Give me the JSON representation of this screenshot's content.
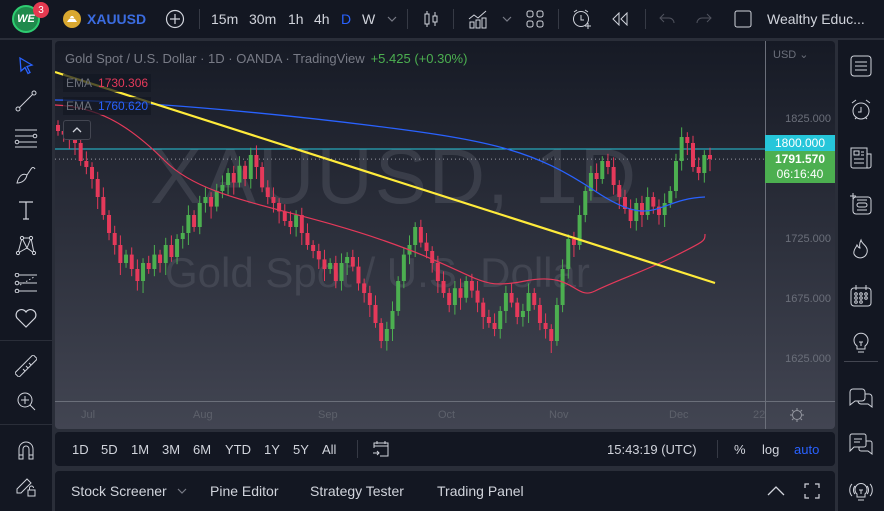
{
  "topbar": {
    "notification_count": "3",
    "logo_text": "WE",
    "symbol": "XAUUSD",
    "intervals": [
      "15m",
      "30m",
      "1h",
      "4h",
      "D",
      "W"
    ],
    "active_interval": "D",
    "layout_name": "Wealthy Educ..."
  },
  "legend": {
    "title": "Gold Spot / U.S. Dollar · 1D · OANDA · TradingView",
    "change": "+5.425 (+0.30%)",
    "ema1_label": "EMA",
    "ema1_value": "1730.306",
    "ema2_label": "EMA",
    "ema2_value": "1760.620"
  },
  "watermark": {
    "symbol": "XAUUSD, 1D",
    "name": "Gold Spot / U.S. Dollar"
  },
  "price_scale": {
    "currency": "USD",
    "levels": [
      "1825.000",
      "1725.000",
      "1675.000",
      "1625.000"
    ],
    "horizontal_line_tag": "1800.000",
    "last_price_tag": "1791.570",
    "countdown": "06:16:40"
  },
  "time_scale": {
    "labels": [
      "Jul",
      "Aug",
      "Sep",
      "Oct",
      "Nov",
      "Dec",
      "22"
    ]
  },
  "bottom_toolbar": {
    "ranges": [
      "1D",
      "5D",
      "1M",
      "3M",
      "6M",
      "YTD",
      "1Y",
      "5Y",
      "All"
    ],
    "clock": "15:43:19 (UTC)",
    "percent": "%",
    "log": "log",
    "auto": "auto"
  },
  "panel_tabs": {
    "items": [
      "Stock Screener",
      "Pine Editor",
      "Strategy Tester",
      "Trading Panel"
    ]
  },
  "colors": {
    "up": "#4caf50",
    "down": "#e5395a",
    "ema_fast": "#e5395a",
    "ema_slow": "#2962ff",
    "trendline": "#ffeb3b",
    "hline": "#26c6da",
    "accent": "#2962ff"
  },
  "chart_data": {
    "type": "candlestick",
    "title": "Gold Spot / U.S. Dollar · 1D · OANDA",
    "y_range": [
      1600,
      1850
    ],
    "horizontal_line": 1800,
    "last_price": 1791.57,
    "ema_fast_last": 1730.306,
    "ema_slow_last": 1760.62,
    "x_labels": [
      "Jul",
      "Aug",
      "Sep",
      "Oct",
      "Nov",
      "Dec",
      "22"
    ]
  }
}
